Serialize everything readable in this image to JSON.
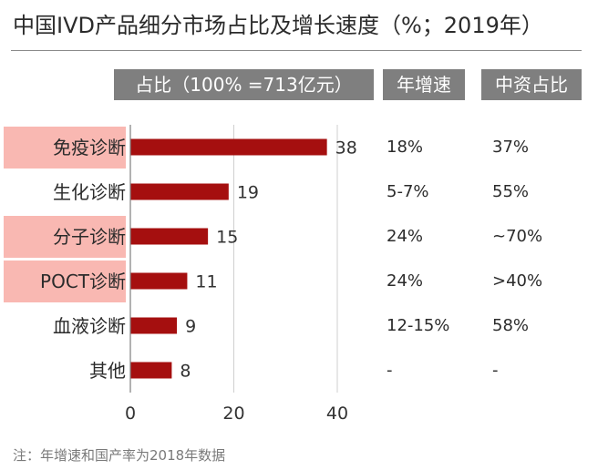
{
  "title": "中国IVD产品细分市场占比及增长速度（%；2019年）",
  "headers": {
    "share": "占比（100% =713亿元）",
    "growth": "年增速",
    "domestic": "中资占比"
  },
  "chart_data": {
    "type": "bar",
    "orientation": "horizontal",
    "title": "中国IVD产品细分市场占比及增长速度（%；2019年）",
    "categories": [
      "免疫诊断",
      "生化诊断",
      "分子诊断",
      "POCT诊断",
      "血液诊断",
      "其他"
    ],
    "values": [
      38,
      19,
      15,
      11,
      9,
      8
    ],
    "xlim": [
      0,
      40
    ],
    "xticks": [
      0,
      20,
      40
    ],
    "grid": true,
    "highlighted": [
      "免疫诊断",
      "分子诊断",
      "POCT诊断"
    ],
    "bar_color": "#a50f0f",
    "highlight_color": "#f9b8b2"
  },
  "table": {
    "growth": [
      "18%",
      "5-7%",
      "24%",
      "24%",
      "12-15%",
      "-"
    ],
    "domestic": [
      "37%",
      "55%",
      "~70%",
      ">40%",
      "58%",
      "-"
    ]
  },
  "note": "注：年增速和国产率为2018年数据"
}
